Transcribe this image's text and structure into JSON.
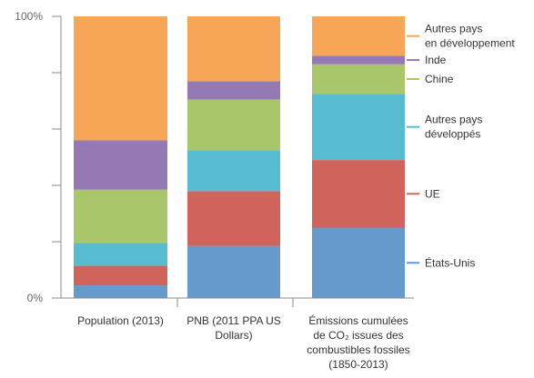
{
  "chart_data": {
    "type": "bar",
    "stacked": true,
    "normalized": true,
    "ylim": [
      0,
      100
    ],
    "y_ticks": [
      {
        "value": 0,
        "label": "0%"
      },
      {
        "value": 100,
        "label": "100%"
      }
    ],
    "y_minor_ticks": [
      20,
      40,
      60,
      80
    ],
    "categories": [
      {
        "key": "population",
        "lines": [
          "Population (2013)"
        ]
      },
      {
        "key": "pnb",
        "lines": [
          "PNB (2011 PPA US",
          "Dollars)"
        ]
      },
      {
        "key": "emissions",
        "lines": [
          "Émissions cumulées",
          "de CO₂ issues des",
          "combustibles fossiles",
          "(1850-2013)"
        ]
      }
    ],
    "series": [
      {
        "name_lines": [
          "États-Unis"
        ],
        "color": "#6699cc",
        "values": [
          4.5,
          18.5,
          25
        ]
      },
      {
        "name_lines": [
          "UE"
        ],
        "color": "#d0645c",
        "values": [
          7,
          19.5,
          24
        ]
      },
      {
        "name_lines": [
          "Autres pays",
          "développés"
        ],
        "color": "#57bcd0",
        "values": [
          8,
          14.5,
          23.5
        ]
      },
      {
        "name_lines": [
          "Chine"
        ],
        "color": "#a9c66a",
        "values": [
          19,
          18,
          10.5
        ]
      },
      {
        "name_lines": [
          "Inde"
        ],
        "color": "#9579b5",
        "values": [
          17.5,
          6.5,
          3
        ]
      },
      {
        "name_lines": [
          "Autres pays",
          "en développement"
        ],
        "color": "#f7a556",
        "values": [
          44,
          23,
          14
        ]
      }
    ],
    "legend": "right"
  }
}
